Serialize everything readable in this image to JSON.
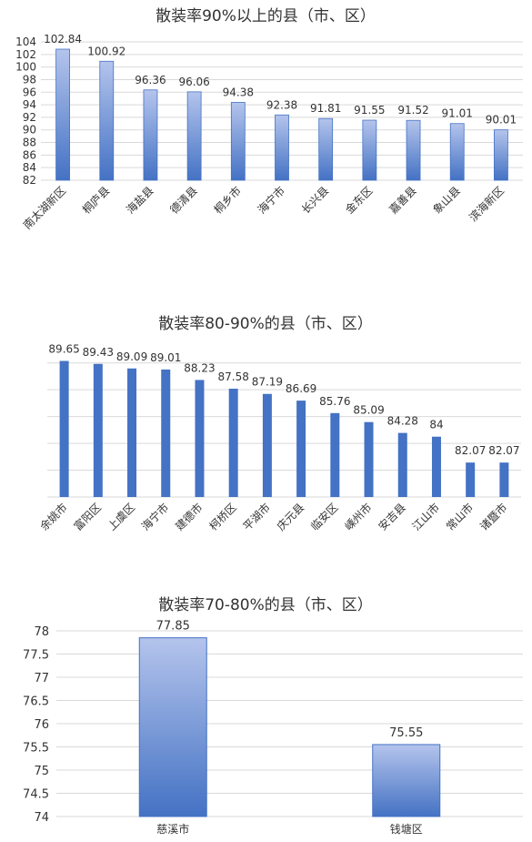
{
  "chart_data": [
    {
      "type": "bar",
      "title": "散装率90%以上的县（市、区）",
      "categories": [
        "南太湖新区",
        "桐庐县",
        "海盐县",
        "德清县",
        "桐乡市",
        "海宁市",
        "长兴县",
        "金东区",
        "嘉善县",
        "象山县",
        "滨海新区"
      ],
      "values": [
        102.84,
        100.92,
        96.36,
        96.06,
        94.38,
        92.38,
        91.81,
        91.55,
        91.52,
        91.01,
        90.01
      ],
      "value_labels": [
        "102.84",
        "100.92",
        "96.36",
        "96.06",
        "94.38",
        "92.38",
        "91.81",
        "91.55",
        "91.52",
        "91.01",
        "90.01"
      ],
      "ylim": [
        82,
        104
      ],
      "yticks": [
        82,
        84,
        86,
        88,
        90,
        92,
        94,
        96,
        98,
        100,
        102,
        104
      ],
      "ytick_labels": [
        "82",
        "84",
        "86",
        "88",
        "90",
        "92",
        "94",
        "96",
        "98",
        "100",
        "102",
        "104"
      ],
      "grid": true,
      "bar_style": "gradient",
      "colors": {
        "bar_top": "#b4c4ec",
        "bar_bottom": "#4472c4",
        "grid": "#d9d9d9"
      }
    },
    {
      "type": "bar",
      "title": "散装率80-90%的县（市、区）",
      "categories": [
        "余姚市",
        "富阳区",
        "上虞区",
        "海宁市",
        "建德市",
        "柯桥区",
        "平湖市",
        "庆元县",
        "临安区",
        "嵊州市",
        "安吉县",
        "江山市",
        "常山市",
        "诸暨市"
      ],
      "values": [
        89.65,
        89.43,
        89.09,
        89.01,
        88.23,
        87.58,
        87.19,
        86.69,
        85.76,
        85.09,
        84.28,
        84,
        82.07,
        82.07
      ],
      "value_labels": [
        "89.65",
        "89.43",
        "89.09",
        "89.01",
        "88.23",
        "87.58",
        "87.19",
        "86.69",
        "85.76",
        "85.09",
        "84.28",
        "84",
        "82.07",
        "82.07"
      ],
      "ylim": [
        79.5,
        90.5
      ],
      "grid": true,
      "bar_style": "solid",
      "colors": {
        "bar": "#4472c4",
        "grid": "#d9d9d9"
      }
    },
    {
      "type": "bar",
      "title": "散装率70-80%的县（市、区）",
      "categories": [
        "慈溪市",
        "钱塘区"
      ],
      "values": [
        77.85,
        75.55
      ],
      "value_labels": [
        "77.85",
        "75.55"
      ],
      "ylim": [
        74,
        78
      ],
      "yticks": [
        74,
        74.5,
        75,
        75.5,
        76,
        76.5,
        77,
        77.5,
        78
      ],
      "ytick_labels": [
        "74",
        "74.5",
        "75",
        "75.5",
        "76",
        "76.5",
        "77",
        "77.5",
        "78"
      ],
      "grid": true,
      "bar_style": "gradient",
      "colors": {
        "bar_top": "#b4c4ec",
        "bar_bottom": "#4472c4",
        "grid": "#d9d9d9"
      }
    }
  ]
}
